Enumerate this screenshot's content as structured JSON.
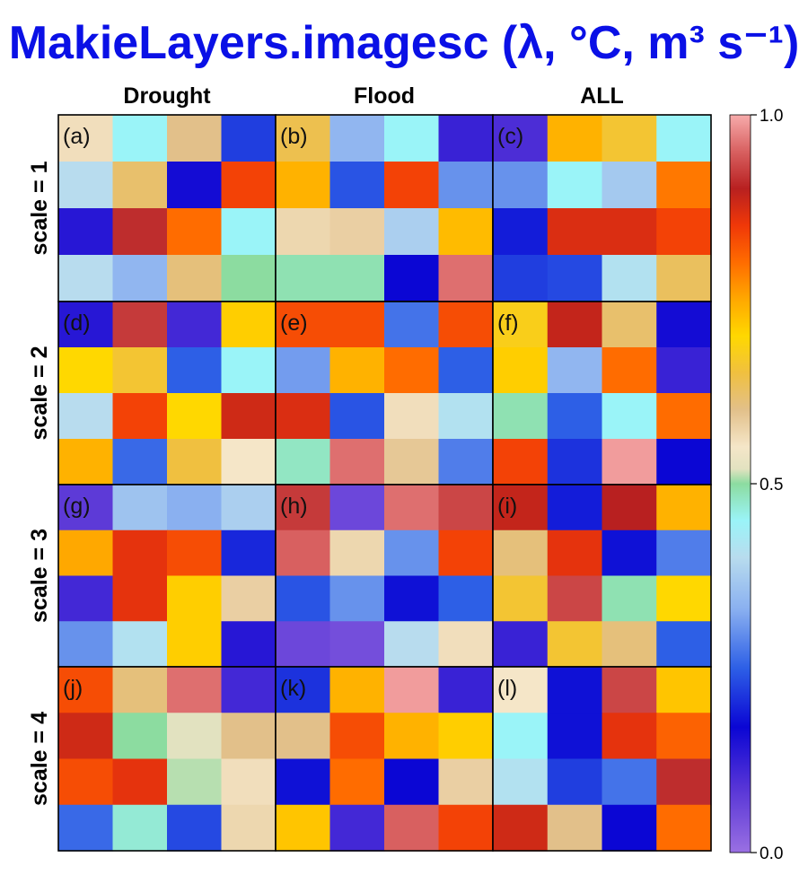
{
  "chart_data": {
    "type": "heatmap",
    "title": "MakieLayers.imagesc (λ, °C, m³ s⁻¹)",
    "columns": [
      "Drought",
      "Flood",
      "ALL"
    ],
    "rows": [
      "scale = 1",
      "scale = 2",
      "scale = 3",
      "scale = 4"
    ],
    "panel_labels": [
      "(a)",
      "(b)",
      "(c)",
      "(d)",
      "(e)",
      "(f)",
      "(g)",
      "(h)",
      "(i)",
      "(j)",
      "(k)",
      "(l)"
    ],
    "colorbar": {
      "range": [
        0.0,
        1.0
      ],
      "ticks": [
        0.0,
        0.5,
        1.0
      ],
      "tick_labels": [
        "0.0",
        "0.5",
        "1.0"
      ],
      "stops": [
        {
          "v": 0.0,
          "c": "#9a70e2"
        },
        {
          "v": 0.09,
          "c": "#5533d6"
        },
        {
          "v": 0.17,
          "c": "#0b06d4"
        },
        {
          "v": 0.25,
          "c": "#2d5fe6"
        },
        {
          "v": 0.33,
          "c": "#8ab0f0"
        },
        {
          "v": 0.4,
          "c": "#b8dcee"
        },
        {
          "v": 0.45,
          "c": "#9af4f8"
        },
        {
          "v": 0.5,
          "c": "#8cdca0"
        },
        {
          "v": 0.52,
          "c": "#e2e2c0"
        },
        {
          "v": 0.55,
          "c": "#f5e6c8"
        },
        {
          "v": 0.6,
          "c": "#e2c08a"
        },
        {
          "v": 0.65,
          "c": "#f0c040"
        },
        {
          "v": 0.7,
          "c": "#ffd800"
        },
        {
          "v": 0.75,
          "c": "#ffa800"
        },
        {
          "v": 0.8,
          "c": "#ff6c00"
        },
        {
          "v": 0.85,
          "c": "#f03808"
        },
        {
          "v": 0.9,
          "c": "#b82020"
        },
        {
          "v": 0.95,
          "c": "#d86060"
        },
        {
          "v": 1.0,
          "c": "#f7abab"
        }
      ]
    },
    "panels": [
      {
        "label": "(a)",
        "values": [
          [
            0.56,
            0.45,
            0.6,
            0.22
          ],
          [
            0.4,
            0.62,
            0.16,
            0.84
          ],
          [
            0.14,
            0.91,
            0.8,
            0.45
          ],
          [
            0.4,
            0.34,
            0.61,
            0.5
          ]
        ]
      },
      {
        "label": "(b)",
        "values": [
          [
            0.64,
            0.34,
            0.45,
            0.12
          ],
          [
            0.74,
            0.24,
            0.84,
            0.3
          ],
          [
            0.57,
            0.58,
            0.38,
            0.73
          ],
          [
            0.49,
            0.49,
            0.17,
            0.96
          ]
        ]
      },
      {
        "label": "(c)",
        "values": [
          [
            0.1,
            0.74,
            0.66,
            0.45
          ],
          [
            0.3,
            0.45,
            0.37,
            0.79
          ],
          [
            0.19,
            0.87,
            0.87,
            0.84
          ],
          [
            0.22,
            0.23,
            0.41,
            0.63
          ]
        ]
      },
      {
        "label": "(d)",
        "values": [
          [
            0.14,
            0.92,
            0.11,
            0.71
          ],
          [
            0.7,
            0.66,
            0.25,
            0.45
          ],
          [
            0.4,
            0.84,
            0.7,
            0.88
          ],
          [
            0.74,
            0.26,
            0.65,
            0.55
          ]
        ]
      },
      {
        "label": "(e)",
        "values": [
          [
            0.83,
            0.83,
            0.27,
            0.83
          ],
          [
            0.31,
            0.74,
            0.8,
            0.25
          ],
          [
            0.87,
            0.24,
            0.56,
            0.41
          ],
          [
            0.48,
            0.96,
            0.59,
            0.28
          ]
        ]
      },
      {
        "label": "(f)",
        "values": [
          [
            0.68,
            0.89,
            0.62,
            0.16
          ],
          [
            0.71,
            0.34,
            0.8,
            0.12
          ],
          [
            0.49,
            0.25,
            0.45,
            0.8
          ],
          [
            0.84,
            0.21,
            0.99,
            0.17
          ]
        ]
      },
      {
        "label": "(g)",
        "values": [
          [
            0.08,
            0.36,
            0.33,
            0.38
          ],
          [
            0.75,
            0.86,
            0.83,
            0.2
          ],
          [
            0.11,
            0.86,
            0.71,
            0.58
          ],
          [
            0.3,
            0.41,
            0.71,
            0.14
          ]
        ]
      },
      {
        "label": "(h)",
        "values": [
          [
            0.92,
            0.06,
            0.96,
            0.93
          ],
          [
            0.95,
            0.57,
            0.3,
            0.84
          ],
          [
            0.24,
            0.3,
            0.18,
            0.25
          ],
          [
            0.06,
            0.05,
            0.4,
            0.56
          ]
        ]
      },
      {
        "label": "(i)",
        "values": [
          [
            0.89,
            0.19,
            0.9,
            0.74
          ],
          [
            0.61,
            0.86,
            0.18,
            0.28
          ],
          [
            0.66,
            0.93,
            0.49,
            0.7
          ],
          [
            0.12,
            0.66,
            0.61,
            0.25
          ]
        ]
      },
      {
        "label": "(j)",
        "values": [
          [
            0.83,
            0.61,
            0.96,
            0.11
          ],
          [
            0.88,
            0.5,
            0.52,
            0.6
          ],
          [
            0.83,
            0.86,
            0.51,
            0.56
          ],
          [
            0.26,
            0.47,
            0.23,
            0.57
          ]
        ]
      },
      {
        "label": "(k)",
        "values": [
          [
            0.21,
            0.74,
            0.99,
            0.12
          ],
          [
            0.6,
            0.83,
            0.74,
            0.71
          ],
          [
            0.18,
            0.8,
            0.17,
            0.58
          ],
          [
            0.72,
            0.11,
            0.95,
            0.84
          ]
        ]
      },
      {
        "label": "(l)",
        "values": [
          [
            0.55,
            0.18,
            0.93,
            0.72
          ],
          [
            0.45,
            0.18,
            0.86,
            0.81
          ],
          [
            0.41,
            0.22,
            0.27,
            0.91
          ],
          [
            0.88,
            0.6,
            0.17,
            0.8
          ]
        ]
      }
    ]
  }
}
